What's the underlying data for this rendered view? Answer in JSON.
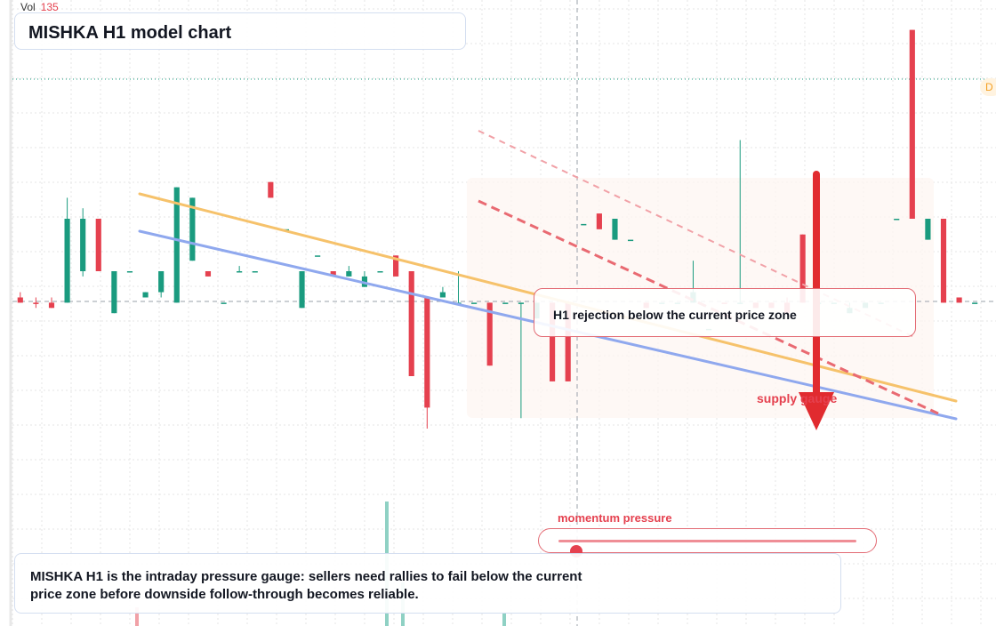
{
  "colors": {
    "bull": "#1a9b7f",
    "bear": "#e5414f",
    "orange_line": "#f6c26b",
    "blue_line": "#8fa8ee",
    "accent": "#e5414f",
    "dashed_red": "#e96a72",
    "dashed_pink": "#f1a1a7"
  },
  "volume": {
    "label": "Vol",
    "value": "135"
  },
  "title": "MISHKA H1 model chart",
  "callout": "H1 rejection below the current price zone",
  "supply_label": "supply gauge",
  "gauge": {
    "label": "momentum pressure",
    "level_pct": 6
  },
  "note": "MISHKA H1 is the intraday pressure gauge: sellers need rallies to fail below the current price zone before downside follow-through becomes reliable.",
  "badge": "D",
  "chart_data": {
    "type": "candlestick",
    "title": "MISHKA H1 model chart",
    "xlabel": "",
    "ylabel": "",
    "ylim": [
      0,
      100
    ],
    "grid": true,
    "legend": "none",
    "candles": [
      {
        "o": 45,
        "h": 46,
        "l": 44,
        "c": 44,
        "dir": "bear"
      },
      {
        "o": 44,
        "h": 45,
        "l": 43,
        "c": 44,
        "dir": "bear"
      },
      {
        "o": 44,
        "h": 45,
        "l": 43,
        "c": 43,
        "dir": "bear"
      },
      {
        "o": 44,
        "h": 64,
        "l": 44,
        "c": 60,
        "dir": "bull"
      },
      {
        "o": 50,
        "h": 62,
        "l": 49,
        "c": 60,
        "dir": "bull"
      },
      {
        "o": 60,
        "h": 60,
        "l": 50,
        "c": 50,
        "dir": "bear"
      },
      {
        "o": 42,
        "h": 50,
        "l": 42,
        "c": 50,
        "dir": "bull"
      },
      {
        "o": 50,
        "h": 50,
        "l": 50,
        "c": 50,
        "dir": "bull"
      },
      {
        "o": 45,
        "h": 46,
        "l": 45,
        "c": 46,
        "dir": "bull"
      },
      {
        "o": 46,
        "h": 50,
        "l": 45,
        "c": 50,
        "dir": "bull"
      },
      {
        "o": 44,
        "h": 66,
        "l": 44,
        "c": 66,
        "dir": "bull"
      },
      {
        "o": 52,
        "h": 64,
        "l": 52,
        "c": 64,
        "dir": "bull"
      },
      {
        "o": 50,
        "h": 50,
        "l": 49,
        "c": 49,
        "dir": "bear"
      },
      {
        "o": 44,
        "h": 44,
        "l": 44,
        "c": 44,
        "dir": "bull"
      },
      {
        "o": 50,
        "h": 51,
        "l": 50,
        "c": 50,
        "dir": "bull"
      },
      {
        "o": 50,
        "h": 50,
        "l": 50,
        "c": 50,
        "dir": "bull"
      },
      {
        "o": 67,
        "h": 67,
        "l": 64,
        "c": 64,
        "dir": "bear"
      },
      {
        "o": 58,
        "h": 58,
        "l": 58,
        "c": 58,
        "dir": "bull"
      },
      {
        "o": 43,
        "h": 50,
        "l": 43,
        "c": 50,
        "dir": "bull"
      },
      {
        "o": 53,
        "h": 53,
        "l": 53,
        "c": 53,
        "dir": "bull"
      },
      {
        "o": 50,
        "h": 50,
        "l": 49,
        "c": 49,
        "dir": "bear"
      },
      {
        "o": 49,
        "h": 51,
        "l": 49,
        "c": 50,
        "dir": "bull"
      },
      {
        "o": 47,
        "h": 50,
        "l": 47,
        "c": 49,
        "dir": "bull"
      },
      {
        "o": 50,
        "h": 50,
        "l": 50,
        "c": 50,
        "dir": "bull"
      },
      {
        "o": 53,
        "h": 53,
        "l": 49,
        "c": 49,
        "dir": "bear"
      },
      {
        "o": 50,
        "h": 50,
        "l": 30,
        "c": 30,
        "dir": "bear"
      },
      {
        "o": 45,
        "h": 45,
        "l": 20,
        "c": 24,
        "dir": "bear"
      },
      {
        "o": 45,
        "h": 47,
        "l": 45,
        "c": 46,
        "dir": "bull"
      },
      {
        "o": 44,
        "h": 50,
        "l": 44,
        "c": 44,
        "dir": "bull"
      },
      {
        "o": 44,
        "h": 44,
        "l": 44,
        "c": 44,
        "dir": "bull"
      },
      {
        "o": 44,
        "h": 44,
        "l": 32,
        "c": 32,
        "dir": "bear"
      },
      {
        "o": 44,
        "h": 44,
        "l": 44,
        "c": 44,
        "dir": "bull"
      },
      {
        "o": 44,
        "h": 44,
        "l": 22,
        "c": 44,
        "dir": "bull"
      },
      {
        "o": 41,
        "h": 44,
        "l": 41,
        "c": 44,
        "dir": "bull"
      },
      {
        "o": 44,
        "h": 44,
        "l": 29,
        "c": 29,
        "dir": "bear"
      },
      {
        "o": 44,
        "h": 44,
        "l": 29,
        "c": 29,
        "dir": "bear"
      },
      {
        "o": 59,
        "h": 59,
        "l": 59,
        "c": 59,
        "dir": "bull"
      },
      {
        "o": 61,
        "h": 61,
        "l": 58,
        "c": 58,
        "dir": "bear"
      },
      {
        "o": 56,
        "h": 60,
        "l": 56,
        "c": 60,
        "dir": "bull"
      },
      {
        "o": 56,
        "h": 56,
        "l": 56,
        "c": 56,
        "dir": "bull"
      },
      {
        "o": 44,
        "h": 44,
        "l": 43,
        "c": 43,
        "dir": "bear"
      },
      {
        "o": 44,
        "h": 44,
        "l": 44,
        "c": 44,
        "dir": "bull"
      },
      {
        "o": 44,
        "h": 44,
        "l": 44,
        "c": 44,
        "dir": "bull"
      },
      {
        "o": 46,
        "h": 52,
        "l": 44,
        "c": 44,
        "dir": "bull"
      },
      {
        "o": 39,
        "h": 39,
        "l": 39,
        "c": 39,
        "dir": "bull"
      },
      {
        "o": 44,
        "h": 44,
        "l": 44,
        "c": 44,
        "dir": "bear"
      },
      {
        "o": 44,
        "h": 75,
        "l": 44,
        "c": 44,
        "dir": "bull"
      },
      {
        "o": 44,
        "h": 44,
        "l": 43,
        "c": 43,
        "dir": "bear"
      },
      {
        "o": 44,
        "h": 44,
        "l": 43,
        "c": 43,
        "dir": "bear"
      },
      {
        "o": 44,
        "h": 45,
        "l": 42,
        "c": 42,
        "dir": "bear"
      },
      {
        "o": 57,
        "h": 57,
        "l": 44,
        "c": 44,
        "dir": "bear"
      },
      {
        "o": 44,
        "h": 44,
        "l": 44,
        "c": 44,
        "dir": "bull"
      },
      {
        "o": 44,
        "h": 44,
        "l": 44,
        "c": 44,
        "dir": "bull"
      },
      {
        "o": 42,
        "h": 44,
        "l": 42,
        "c": 43,
        "dir": "bull"
      },
      {
        "o": 43,
        "h": 44,
        "l": 43,
        "c": 44,
        "dir": "bull"
      },
      {
        "o": 44,
        "h": 44,
        "l": 44,
        "c": 44,
        "dir": "bull"
      },
      {
        "o": 60,
        "h": 60,
        "l": 60,
        "c": 60,
        "dir": "bull"
      },
      {
        "o": 96,
        "h": 96,
        "l": 60,
        "c": 60,
        "dir": "bear"
      },
      {
        "o": 60,
        "h": 60,
        "l": 56,
        "c": 56,
        "dir": "bull"
      },
      {
        "o": 60,
        "h": 60,
        "l": 44,
        "c": 44,
        "dir": "bear"
      },
      {
        "o": 45,
        "h": 45,
        "l": 44,
        "c": 44,
        "dir": "bear"
      },
      {
        "o": 44,
        "h": 44,
        "l": 44,
        "c": 44,
        "dir": "bull"
      }
    ]
  }
}
